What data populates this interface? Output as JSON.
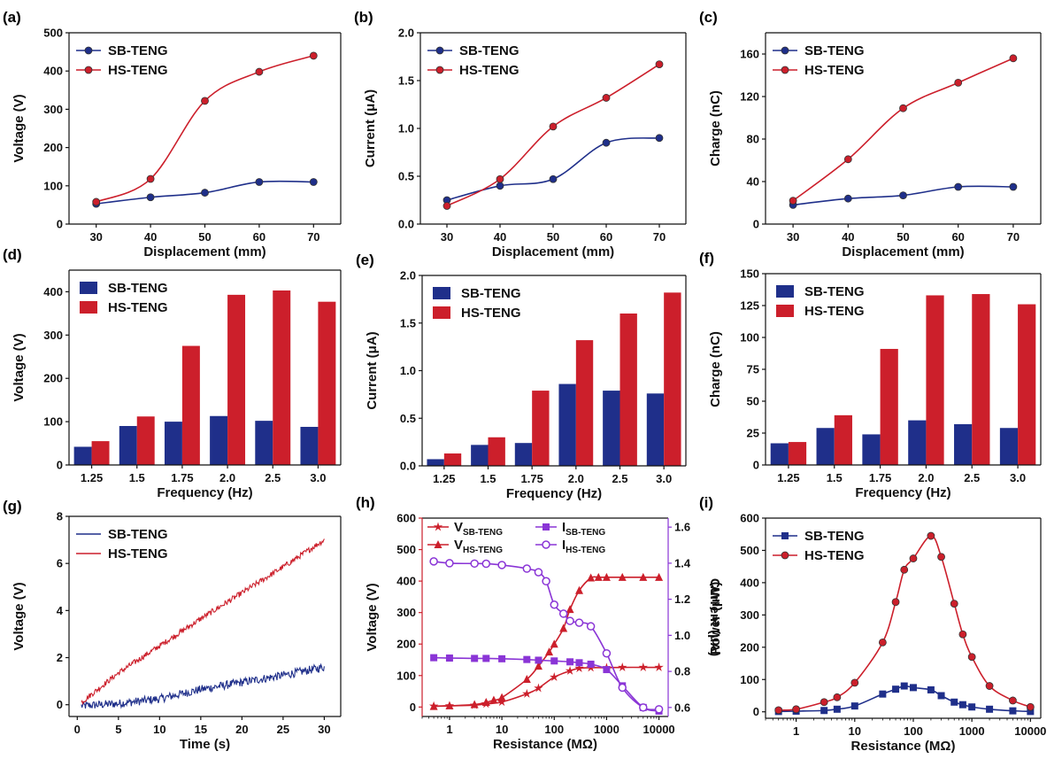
{
  "colors": {
    "sb": "#1f2f8a",
    "hs": "#cc1f2b",
    "purple": "#8a35d6",
    "axis": "#111111"
  },
  "chart_data": [
    {
      "id": "a",
      "label": "(a)",
      "type": "line",
      "xlabel": "Displacement (mm)",
      "ylabel": "Voltage (V)",
      "xlim": [
        25,
        75
      ],
      "ylim": [
        0,
        500
      ],
      "xticks": [
        30,
        40,
        50,
        60,
        70
      ],
      "yticks": [
        0,
        100,
        200,
        300,
        400,
        500
      ],
      "legend": "top-left",
      "smooth": true,
      "series": [
        {
          "name": "SB-TENG",
          "color": "sb",
          "marker": "circle",
          "x": [
            30,
            40,
            50,
            60,
            70
          ],
          "y": [
            53,
            70,
            82,
            110,
            110
          ]
        },
        {
          "name": "HS-TENG",
          "color": "hs",
          "marker": "circle",
          "x": [
            30,
            40,
            50,
            60,
            70
          ],
          "y": [
            58,
            118,
            322,
            398,
            440
          ]
        }
      ]
    },
    {
      "id": "b",
      "label": "(b)",
      "type": "line",
      "xlabel": "Displacement (mm)",
      "ylabel": "Current (μA)",
      "xlim": [
        25,
        75
      ],
      "ylim": [
        0,
        2.0
      ],
      "xticks": [
        30,
        40,
        50,
        60,
        70
      ],
      "yticks": [
        0,
        0.5,
        1.0,
        1.5,
        2.0
      ],
      "yticklabels": [
        "0.0",
        "0.5",
        "1.0",
        "1.5",
        "2.0"
      ],
      "legend": "top-left",
      "smooth": true,
      "series": [
        {
          "name": "SB-TENG",
          "color": "sb",
          "marker": "circle",
          "x": [
            30,
            40,
            50,
            60,
            70
          ],
          "y": [
            0.25,
            0.4,
            0.47,
            0.85,
            0.9
          ]
        },
        {
          "name": "HS-TENG",
          "color": "hs",
          "marker": "circle",
          "x": [
            30,
            40,
            50,
            60,
            70
          ],
          "y": [
            0.19,
            0.47,
            1.02,
            1.32,
            1.67
          ]
        }
      ]
    },
    {
      "id": "c",
      "label": "(c)",
      "type": "line",
      "xlabel": "Displacement (mm)",
      "ylabel": "Charge (nC)",
      "xlim": [
        25,
        75
      ],
      "ylim": [
        0,
        180
      ],
      "xticks": [
        30,
        40,
        50,
        60,
        70
      ],
      "yticks": [
        0,
        40,
        80,
        120,
        160
      ],
      "legend": "top-left",
      "smooth": true,
      "series": [
        {
          "name": "SB-TENG",
          "color": "sb",
          "marker": "circle",
          "x": [
            30,
            40,
            50,
            60,
            70
          ],
          "y": [
            18,
            24,
            27,
            35,
            35
          ]
        },
        {
          "name": "HS-TENG",
          "color": "hs",
          "marker": "circle",
          "x": [
            30,
            40,
            50,
            60,
            70
          ],
          "y": [
            22,
            61,
            109,
            133,
            156
          ]
        }
      ]
    },
    {
      "id": "d",
      "label": "(d)",
      "type": "bar",
      "xlabel": "Frequency (Hz)",
      "ylabel": "Voltage (V)",
      "ylim": [
        0,
        450
      ],
      "yticks": [
        0,
        100,
        200,
        300,
        400
      ],
      "categories": [
        "1.25",
        "1.5",
        "1.75",
        "2.0",
        "2.5",
        "3.0"
      ],
      "legend": "top-left",
      "series": [
        {
          "name": "SB-TENG",
          "color": "sb",
          "values": [
            42,
            90,
            100,
            113,
            102,
            88
          ]
        },
        {
          "name": "HS-TENG",
          "color": "hs",
          "values": [
            55,
            112,
            275,
            393,
            403,
            377
          ]
        }
      ]
    },
    {
      "id": "e",
      "label": "(e)",
      "type": "bar",
      "xlabel": "Frequency (Hz)",
      "ylabel": "Current (μA)",
      "ylim": [
        0,
        2.0
      ],
      "yticks": [
        0,
        0.5,
        1.0,
        1.5,
        2.0
      ],
      "yticklabels": [
        "0.0",
        "0.5",
        "1.0",
        "1.5",
        "2.0"
      ],
      "categories": [
        "1.25",
        "1.5",
        "1.75",
        "2.0",
        "2.5",
        "3.0"
      ],
      "legend": "top-left",
      "series": [
        {
          "name": "SB-TENG",
          "color": "sb",
          "values": [
            0.07,
            0.22,
            0.24,
            0.86,
            0.79,
            0.76
          ]
        },
        {
          "name": "HS-TENG",
          "color": "hs",
          "values": [
            0.13,
            0.3,
            0.79,
            1.32,
            1.6,
            1.82
          ]
        }
      ]
    },
    {
      "id": "f",
      "label": "(f)",
      "type": "bar",
      "xlabel": "Frequency (Hz)",
      "ylabel": "Charge (nC)",
      "ylim": [
        0,
        150
      ],
      "yticks": [
        0,
        25,
        50,
        75,
        100,
        125,
        150
      ],
      "categories": [
        "1.25",
        "1.5",
        "1.75",
        "2.0",
        "2.5",
        "3.0"
      ],
      "legend": "top-left",
      "series": [
        {
          "name": "SB-TENG",
          "color": "sb",
          "values": [
            17,
            29,
            24,
            35,
            32,
            29
          ]
        },
        {
          "name": "HS-TENG",
          "color": "hs",
          "values": [
            18,
            39,
            91,
            133,
            134,
            126
          ]
        }
      ]
    },
    {
      "id": "g",
      "label": "(g)",
      "type": "line",
      "xlabel": "Time (s)",
      "ylabel": "Voltage (V)",
      "xlim": [
        -1,
        32
      ],
      "ylim": [
        -0.5,
        8
      ],
      "xticks": [
        0,
        5,
        10,
        15,
        20,
        25,
        30
      ],
      "yticks": [
        0,
        2,
        4,
        6,
        8
      ],
      "legend": "top-left",
      "series": [
        {
          "name": "SB-TENG",
          "color": "sb",
          "marker": "none",
          "noisy": true,
          "noise": 0.18,
          "x": [
            0.5,
            5,
            10,
            15,
            20,
            25,
            30
          ],
          "y": [
            -0.05,
            0.05,
            0.25,
            0.65,
            0.95,
            1.25,
            1.6
          ]
        },
        {
          "name": "HS-TENG",
          "color": "hs",
          "marker": "none",
          "noisy": true,
          "noise": 0.12,
          "x": [
            0.5,
            5,
            10,
            15,
            20,
            25,
            30
          ],
          "y": [
            0.1,
            1.35,
            2.5,
            3.65,
            4.75,
            5.85,
            7.0
          ]
        }
      ]
    },
    {
      "id": "h",
      "label": "(h)",
      "type": "line",
      "xlabel": "Resistance (MΩ)",
      "ylabel": "Voltage (V)",
      "ylabel2": "Current (μA)",
      "xscale": "log",
      "xlim": [
        0.3,
        15000
      ],
      "ylim": [
        -30,
        600
      ],
      "y2lim": [
        0.55,
        1.65
      ],
      "xticks": [
        1,
        10,
        100,
        1000,
        10000
      ],
      "xticklabels": [
        "1",
        "10",
        "100",
        "1000",
        "10000"
      ],
      "yticks": [
        0,
        100,
        200,
        300,
        400,
        500,
        600
      ],
      "y2ticks": [
        0.6,
        0.8,
        1.0,
        1.2,
        1.4,
        1.6
      ],
      "y2ticklabels": [
        "0.6",
        "0.8",
        "1.0",
        "1.2",
        "1.4",
        "1.6"
      ],
      "left_axis_color": "hs",
      "right_axis_color": "purple",
      "legend": "top",
      "smooth": true,
      "series": [
        {
          "name": "V",
          "sub": "SB-TENG",
          "color": "hs",
          "marker": "star",
          "axis": "left",
          "x": [
            0.5,
            1,
            3,
            5,
            10,
            30,
            50,
            100,
            200,
            300,
            500,
            1000,
            2000,
            5000,
            10000
          ],
          "y": [
            3,
            4,
            6,
            10,
            16,
            42,
            60,
            95,
            115,
            123,
            125,
            125,
            126,
            126,
            126
          ]
        },
        {
          "name": "V",
          "sub": "HS-TENG",
          "color": "hs",
          "marker": "triangle",
          "axis": "left",
          "x": [
            0.5,
            1,
            3,
            5,
            7,
            10,
            30,
            50,
            80,
            100,
            150,
            200,
            300,
            500,
            700,
            1000,
            2000,
            5000,
            10000
          ],
          "y": [
            2,
            4,
            8,
            15,
            22,
            30,
            88,
            130,
            175,
            200,
            250,
            310,
            370,
            410,
            412,
            412,
            412,
            412,
            412
          ]
        },
        {
          "name": "I",
          "sub": "SB-TENG",
          "color": "purple",
          "marker": "square",
          "axis": "right",
          "x": [
            0.5,
            1,
            3,
            5,
            10,
            30,
            50,
            100,
            200,
            300,
            500,
            1000,
            2000,
            5000,
            10000
          ],
          "y": [
            0.876,
            0.874,
            0.872,
            0.872,
            0.87,
            0.866,
            0.862,
            0.858,
            0.853,
            0.848,
            0.84,
            0.81,
            0.72,
            0.6,
            0.58
          ]
        },
        {
          "name": "I",
          "sub": "HS-TENG",
          "color": "purple",
          "marker": "circle-open",
          "axis": "right",
          "x": [
            0.5,
            1,
            3,
            5,
            10,
            30,
            50,
            70,
            100,
            150,
            200,
            300,
            500,
            1000,
            2000,
            5000,
            10000
          ],
          "y": [
            1.41,
            1.4,
            1.398,
            1.397,
            1.39,
            1.37,
            1.35,
            1.3,
            1.17,
            1.12,
            1.08,
            1.07,
            1.05,
            0.9,
            0.71,
            0.6,
            0.59
          ]
        }
      ]
    },
    {
      "id": "i",
      "label": "(i)",
      "type": "line",
      "xlabel": "Resistance (MΩ)",
      "ylabel": "Power (μW)",
      "xscale": "log",
      "xlim": [
        0.3,
        15000
      ],
      "ylim": [
        -20,
        600
      ],
      "xticks": [
        1,
        10,
        100,
        1000,
        10000
      ],
      "xticklabels": [
        "1",
        "10",
        "100",
        "1000",
        "10000"
      ],
      "yticks": [
        0,
        100,
        200,
        300,
        400,
        500,
        600
      ],
      "legend": "top-left",
      "smooth": true,
      "series": [
        {
          "name": "SB-TENG",
          "color": "sb",
          "marker": "square",
          "x": [
            0.5,
            1,
            3,
            5,
            10,
            30,
            50,
            70,
            100,
            200,
            300,
            500,
            700,
            1000,
            2000,
            5000,
            10000
          ],
          "y": [
            1,
            2,
            4,
            8,
            18,
            55,
            70,
            80,
            75,
            68,
            50,
            30,
            22,
            15,
            8,
            3,
            1
          ]
        },
        {
          "name": "HS-TENG",
          "color": "hs",
          "marker": "circle",
          "x": [
            0.5,
            1,
            3,
            5,
            10,
            30,
            50,
            70,
            100,
            200,
            300,
            500,
            700,
            1000,
            2000,
            5000,
            10000
          ],
          "y": [
            5,
            8,
            30,
            45,
            90,
            215,
            340,
            440,
            475,
            545,
            480,
            335,
            240,
            170,
            80,
            35,
            15
          ]
        }
      ]
    }
  ]
}
